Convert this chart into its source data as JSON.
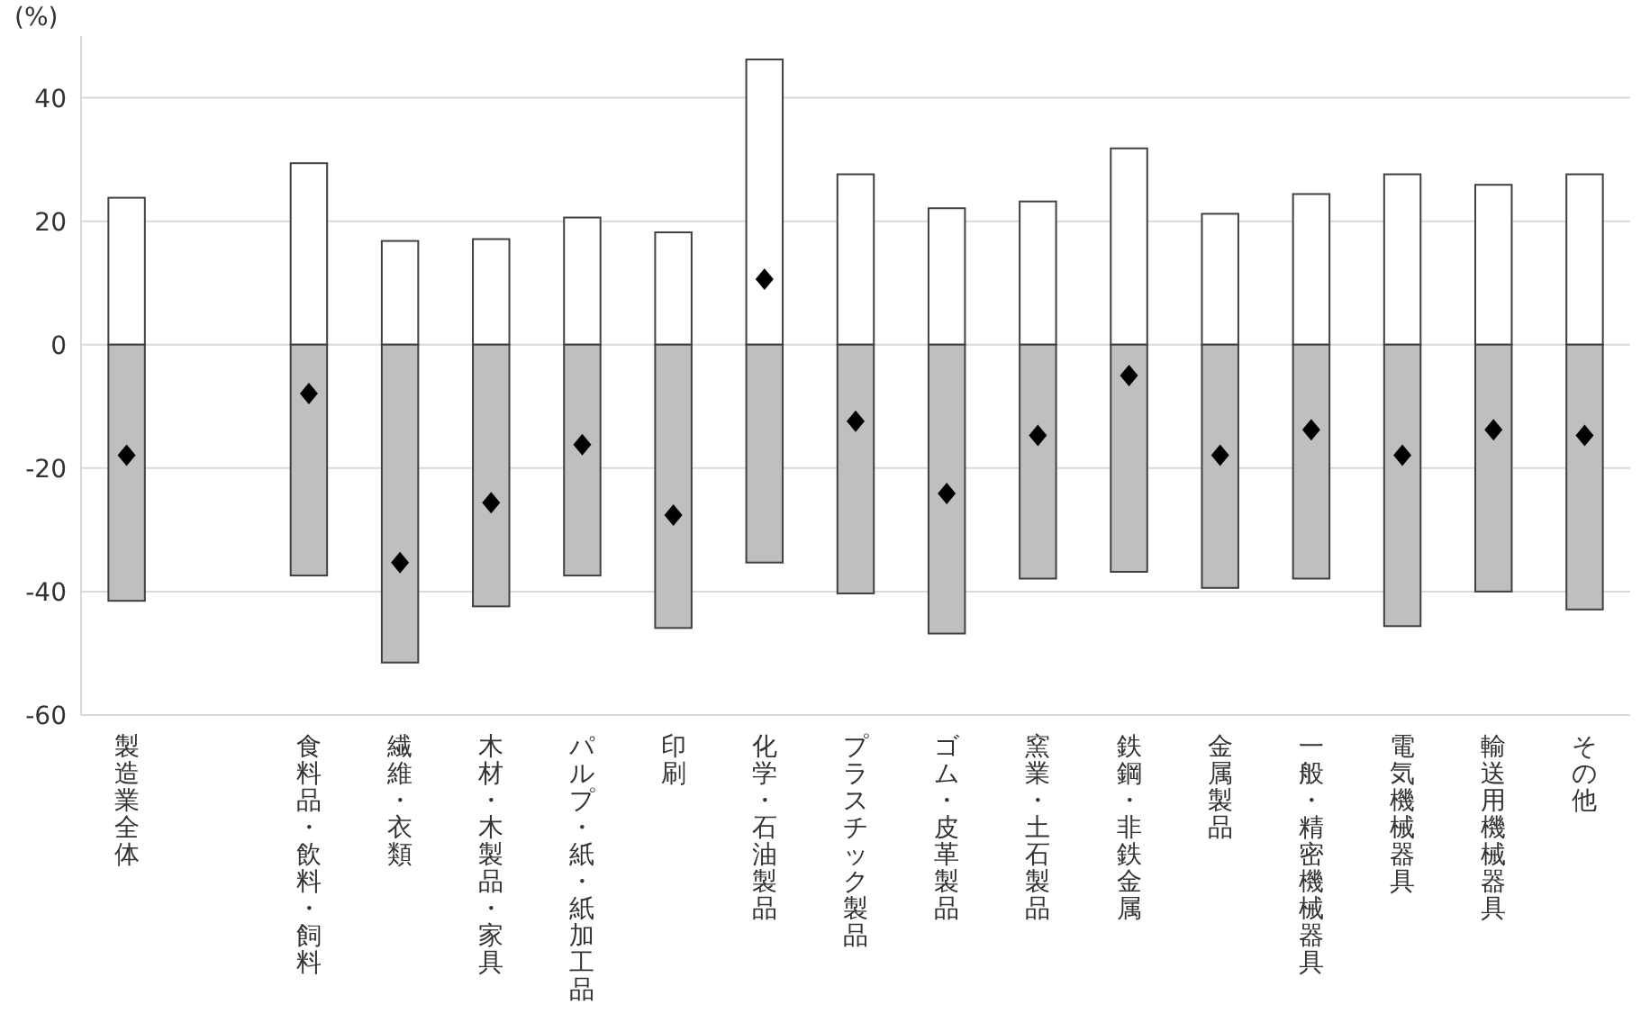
{
  "chart_data": {
    "type": "bar",
    "stacked": true,
    "ylabel": "(%)",
    "categories": [
      "製造業全体",
      null,
      "食料品・飲料・飼料",
      "繊維・衣類",
      "木材・木製品・家具",
      "パルプ・紙・紙加工品",
      "印刷",
      "化学・石油製品",
      "プラスチック製品",
      "ゴム・皮革製品",
      "窯業・土石製品",
      "鉄鋼・非鉄金属",
      "金属製品",
      "一般・精密機械器具",
      "電気機械器具",
      "輸送用機械器具",
      "その他"
    ],
    "series": [
      {
        "color": "#ffffff",
        "values": [
          23.8,
          null,
          29.4,
          16.8,
          17.1,
          20.6,
          18.2,
          46.2,
          27.6,
          22.1,
          23.2,
          31.8,
          21.2,
          24.4,
          27.6,
          25.9,
          27.6
        ]
      },
      {
        "color": "#bfbfbf",
        "values": [
          -41.5,
          null,
          -37.4,
          -51.5,
          -42.4,
          -37.4,
          -45.9,
          -35.3,
          -40.3,
          -46.8,
          -37.9,
          -36.8,
          -39.4,
          -37.9,
          -45.6,
          -40.0,
          -42.9
        ]
      },
      {
        "type": "scatter",
        "color": "#000000",
        "marker": "diamond",
        "values": [
          -17.9,
          null,
          -7.9,
          -35.3,
          -25.6,
          -16.2,
          -27.6,
          10.6,
          -12.4,
          -24.1,
          -14.7,
          -5.0,
          -17.9,
          -13.8,
          -17.9,
          -13.8,
          -14.7
        ]
      }
    ],
    "ylim": [
      -60,
      50
    ],
    "yticks": [
      -60,
      -40,
      -20,
      0,
      20,
      40
    ],
    "grid": "y"
  }
}
